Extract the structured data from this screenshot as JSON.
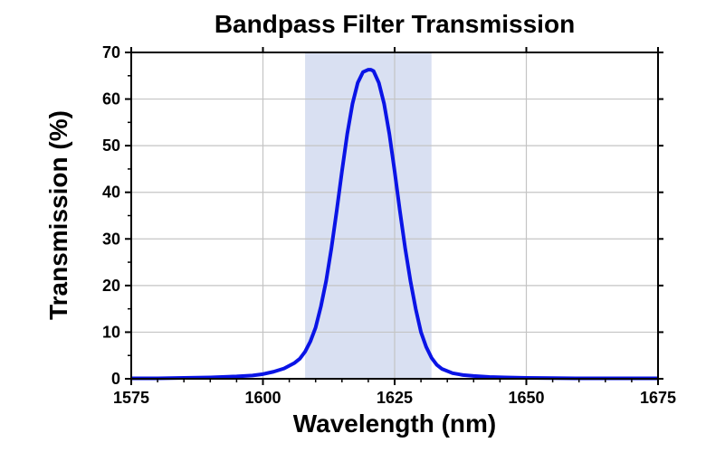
{
  "chart_data": {
    "type": "line",
    "title": "Bandpass Filter Transmission",
    "xlabel": "Wavelength (nm)",
    "ylabel": "Transmission (%)",
    "xlim": [
      1575,
      1675
    ],
    "ylim": [
      0,
      70
    ],
    "x_ticks": [
      "1575",
      "1600",
      "1625",
      "1650",
      "1675"
    ],
    "y_ticks": [
      "0",
      "10",
      "20",
      "30",
      "40",
      "50",
      "60",
      "70"
    ],
    "grid": true,
    "passband": {
      "x_start": 1608,
      "x_end": 1632,
      "color": "#d9e0f2"
    },
    "series": [
      {
        "color": "#0a14e6",
        "x": [
          1575,
          1580,
          1585,
          1590,
          1595,
          1598,
          1600,
          1602,
          1604,
          1606,
          1607,
          1608,
          1609,
          1610,
          1611,
          1612,
          1613,
          1614,
          1615,
          1616,
          1617,
          1618,
          1619,
          1620,
          1620.5,
          1621,
          1622,
          1623,
          1624,
          1625,
          1626,
          1627,
          1628,
          1629,
          1630,
          1631,
          1632,
          1633,
          1634,
          1636,
          1638,
          1640,
          1643,
          1646,
          1650,
          1655,
          1660,
          1665,
          1670,
          1675
        ],
        "y": [
          0.1,
          0.1,
          0.2,
          0.3,
          0.5,
          0.7,
          1.0,
          1.5,
          2.2,
          3.4,
          4.3,
          5.8,
          8.0,
          11.0,
          15.5,
          21.0,
          28.0,
          36.0,
          44.5,
          52.5,
          59.0,
          63.5,
          65.8,
          66.3,
          66.3,
          66.0,
          63.5,
          59.0,
          52.5,
          44.5,
          36.0,
          28.0,
          21.0,
          15.0,
          10.0,
          6.8,
          4.5,
          3.0,
          2.1,
          1.2,
          0.8,
          0.6,
          0.4,
          0.3,
          0.2,
          0.15,
          0.1,
          0.1,
          0.1,
          0.1
        ]
      }
    ]
  }
}
